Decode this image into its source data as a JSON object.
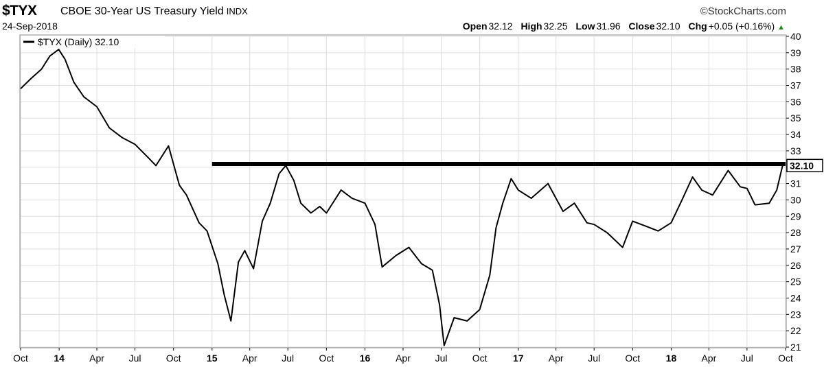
{
  "header": {
    "symbol": "$TYX",
    "name": "CBOE 30-Year US Treasury Yield",
    "exchange": "INDX",
    "date": "24-Sep-2018",
    "brand": "©StockCharts.com",
    "open_label": "Open",
    "open": "32.12",
    "high_label": "High",
    "high": "32.25",
    "low_label": "Low",
    "low": "31.96",
    "close_label": "Close",
    "close": "32.10",
    "chg_label": "Chg",
    "chg": "+0.05 (+0.16%)",
    "chg_icon": "up-triangle-icon",
    "up_color": "#1a8c1a"
  },
  "legend": {
    "text": "$TYX (Daily) 32.10"
  },
  "chart_data": {
    "type": "line",
    "series": [
      {
        "name": "$TYX (Daily)",
        "x": [
          "2013-10-01",
          "2013-10-25",
          "2013-11-20",
          "2013-12-10",
          "2013-12-31",
          "2014-01-15",
          "2014-02-05",
          "2014-03-01",
          "2014-04-01",
          "2014-05-01",
          "2014-06-01",
          "2014-07-01",
          "2014-08-01",
          "2014-08-20",
          "2014-09-19",
          "2014-10-15",
          "2014-11-01",
          "2014-12-01",
          "2014-12-20",
          "2015-01-15",
          "2015-01-30",
          "2015-02-15",
          "2015-03-05",
          "2015-03-20",
          "2015-04-10",
          "2015-05-01",
          "2015-05-20",
          "2015-06-10",
          "2015-06-26",
          "2015-07-15",
          "2015-08-01",
          "2015-08-25",
          "2015-09-15",
          "2015-10-01",
          "2015-11-05",
          "2015-12-01",
          "2016-01-01",
          "2016-01-25",
          "2016-02-11",
          "2016-03-15",
          "2016-04-15",
          "2016-05-15",
          "2016-06-10",
          "2016-06-27",
          "2016-07-08",
          "2016-08-01",
          "2016-09-01",
          "2016-10-01",
          "2016-10-25",
          "2016-11-09",
          "2016-11-25",
          "2016-12-15",
          "2017-01-01",
          "2017-02-01",
          "2017-03-13",
          "2017-04-18",
          "2017-05-15",
          "2017-06-14",
          "2017-07-01",
          "2017-08-01",
          "2017-09-07",
          "2017-10-01",
          "2017-11-01",
          "2017-12-01",
          "2018-01-01",
          "2018-01-25",
          "2018-02-21",
          "2018-03-15",
          "2018-04-10",
          "2018-05-17",
          "2018-06-15",
          "2018-07-01",
          "2018-07-20",
          "2018-08-23",
          "2018-09-10",
          "2018-09-24"
        ],
        "y": [
          36.8,
          37.4,
          38.0,
          38.8,
          39.2,
          38.6,
          37.2,
          36.3,
          35.7,
          34.4,
          33.8,
          33.4,
          32.6,
          32.1,
          33.3,
          30.9,
          30.3,
          28.6,
          28.1,
          26.1,
          24.2,
          22.6,
          26.2,
          26.9,
          25.8,
          28.7,
          29.8,
          31.6,
          32.1,
          31.2,
          29.8,
          29.2,
          29.6,
          29.2,
          30.6,
          30.1,
          29.8,
          28.5,
          25.9,
          26.6,
          27.1,
          26.1,
          25.7,
          23.6,
          21.1,
          22.8,
          22.6,
          23.3,
          25.4,
          28.3,
          29.8,
          31.3,
          30.6,
          30.1,
          31.0,
          29.3,
          29.8,
          28.6,
          28.5,
          28.0,
          27.1,
          28.7,
          28.4,
          28.1,
          28.6,
          29.9,
          31.4,
          30.6,
          30.3,
          31.8,
          30.8,
          30.7,
          29.7,
          29.8,
          30.6,
          32.1
        ]
      }
    ],
    "resistance_line": 32.2,
    "last_value_label": "32.10",
    "ylim": [
      21,
      40
    ],
    "y_ticks": [
      21,
      22,
      23,
      24,
      25,
      26,
      27,
      28,
      29,
      30,
      31,
      32,
      33,
      34,
      35,
      36,
      37,
      38,
      39,
      40
    ],
    "x_range": [
      "2013-10-01",
      "2018-10-01"
    ],
    "x_ticks": [
      {
        "date": "2013-10-01",
        "label": "Oct",
        "bold": false
      },
      {
        "date": "2014-01-01",
        "label": "14",
        "bold": true
      },
      {
        "date": "2014-04-01",
        "label": "Apr",
        "bold": false
      },
      {
        "date": "2014-07-01",
        "label": "Jul",
        "bold": false
      },
      {
        "date": "2014-10-01",
        "label": "Oct",
        "bold": false
      },
      {
        "date": "2015-01-01",
        "label": "15",
        "bold": true
      },
      {
        "date": "2015-04-01",
        "label": "Apr",
        "bold": false
      },
      {
        "date": "2015-07-01",
        "label": "Jul",
        "bold": false
      },
      {
        "date": "2015-10-01",
        "label": "Oct",
        "bold": false
      },
      {
        "date": "2016-01-01",
        "label": "16",
        "bold": true
      },
      {
        "date": "2016-04-01",
        "label": "Apr",
        "bold": false
      },
      {
        "date": "2016-07-01",
        "label": "Jul",
        "bold": false
      },
      {
        "date": "2016-10-01",
        "label": "Oct",
        "bold": false
      },
      {
        "date": "2017-01-01",
        "label": "17",
        "bold": true
      },
      {
        "date": "2017-04-01",
        "label": "Apr",
        "bold": false
      },
      {
        "date": "2017-07-01",
        "label": "Jul",
        "bold": false
      },
      {
        "date": "2017-10-01",
        "label": "Oct",
        "bold": false
      },
      {
        "date": "2018-01-01",
        "label": "18",
        "bold": true
      },
      {
        "date": "2018-04-01",
        "label": "Apr",
        "bold": false
      },
      {
        "date": "2018-07-01",
        "label": "Jul",
        "bold": false
      },
      {
        "date": "2018-10-01",
        "label": "Oct",
        "bold": false
      }
    ],
    "grid": true,
    "legend_position": "top-left",
    "line_color": "#000000",
    "grid_color": "#dddddd"
  }
}
